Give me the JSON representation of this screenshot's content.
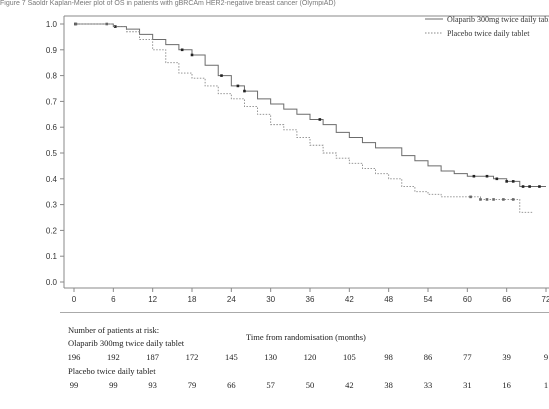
{
  "caption": "Figure 7 Saoldr Kaplan-Meier plot of OS in patients with gBRCAm HER2-negative breast cancer (OlympiAD)",
  "chart_data": {
    "type": "line",
    "title": "",
    "xlabel": "Time from randomisation (months)",
    "ylabel": "",
    "xlim": [
      -2,
      72
    ],
    "ylim": [
      0,
      1.0
    ],
    "x_ticks": [
      0,
      6,
      12,
      18,
      24,
      30,
      36,
      42,
      48,
      54,
      60,
      66,
      72
    ],
    "x_tick_labels": [
      "0",
      "6",
      "12",
      "18",
      "24",
      "30",
      "36",
      "42",
      "48",
      "54",
      "60",
      "66",
      "72"
    ],
    "y_ticks": [
      0.0,
      0.1,
      0.2,
      0.3,
      0.4,
      0.5,
      0.6,
      0.7,
      0.8,
      0.9,
      1.0
    ],
    "y_tick_labels": [
      "0.0",
      "0.1",
      "0.2",
      "0.3",
      "0.4",
      "0.5",
      "0.6",
      "0.7",
      "0.8",
      "0.9",
      "1.0"
    ],
    "grid": false,
    "legend_position": "top-right",
    "series": [
      {
        "name": "Olaparib 300mg twice daily tablet",
        "color": "#6b6b6b",
        "dash": "solid",
        "x": [
          0,
          4,
          6,
          8,
          10,
          12,
          14,
          16,
          18,
          20,
          22,
          24,
          26,
          28,
          30,
          32,
          34,
          36,
          38,
          40,
          42,
          44,
          46,
          48,
          50,
          52,
          54,
          56,
          58,
          60,
          62,
          64,
          66,
          68,
          70,
          72
        ],
        "y": [
          1.0,
          1.0,
          0.99,
          0.98,
          0.96,
          0.94,
          0.92,
          0.9,
          0.88,
          0.84,
          0.8,
          0.76,
          0.74,
          0.71,
          0.69,
          0.67,
          0.65,
          0.63,
          0.61,
          0.58,
          0.56,
          0.54,
          0.52,
          0.52,
          0.49,
          0.47,
          0.45,
          0.43,
          0.42,
          0.41,
          0.41,
          0.4,
          0.39,
          0.37,
          0.37,
          0.37
        ],
        "censor_x": [
          0.2,
          6.3,
          16.5,
          18.0,
          22.5,
          25.0,
          26.0,
          37.5,
          61.0,
          63.0,
          64.5,
          66.0,
          67.0,
          68.5,
          69.5,
          71.0
        ]
      },
      {
        "name": "Placebo twice daily tablet",
        "color": "#888888",
        "dash": "dotted",
        "x": [
          0,
          4,
          6,
          8,
          10,
          12,
          14,
          16,
          18,
          20,
          22,
          24,
          26,
          28,
          30,
          32,
          34,
          36,
          38,
          40,
          42,
          44,
          46,
          48,
          50,
          52,
          54,
          56,
          58,
          60,
          62,
          64,
          66,
          68,
          70
        ],
        "y": [
          1.0,
          1.0,
          0.99,
          0.97,
          0.94,
          0.9,
          0.85,
          0.81,
          0.79,
          0.76,
          0.73,
          0.71,
          0.68,
          0.65,
          0.61,
          0.59,
          0.56,
          0.53,
          0.5,
          0.48,
          0.46,
          0.44,
          0.42,
          0.4,
          0.37,
          0.35,
          0.34,
          0.33,
          0.33,
          0.33,
          0.32,
          0.32,
          0.32,
          0.27,
          0.27
        ],
        "censor_x": [
          0.3,
          5.0,
          60.5,
          62.0,
          63.0,
          64.0,
          65.5,
          67.0
        ]
      }
    ],
    "risk_table": {
      "title": "Number of patients at risk:",
      "time_points": [
        0,
        6,
        12,
        18,
        24,
        30,
        36,
        42,
        48,
        54,
        60,
        66,
        72
      ],
      "groups": [
        {
          "label": "Olaparib 300mg twice daily tablet",
          "counts": [
            "196",
            "192",
            "187",
            "172",
            "145",
            "130",
            "120",
            "105",
            "98",
            "86",
            "77",
            "39",
            "9"
          ]
        },
        {
          "label": "Placebo twice daily tablet",
          "counts": [
            "99",
            "99",
            "93",
            "79",
            "66",
            "57",
            "50",
            "42",
            "38",
            "33",
            "31",
            "16",
            "1"
          ]
        }
      ]
    }
  }
}
